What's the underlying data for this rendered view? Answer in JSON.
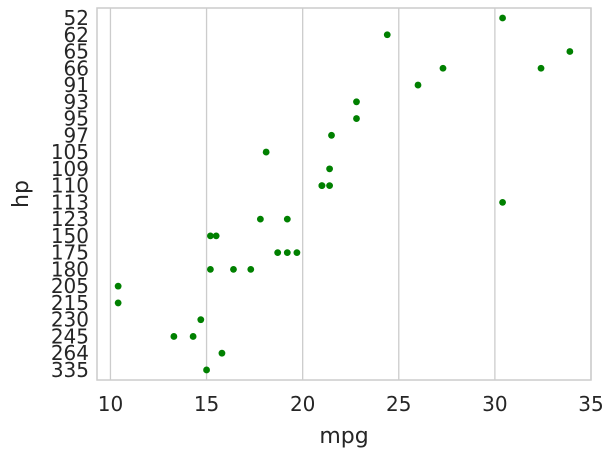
{
  "chart_data": {
    "type": "scatter",
    "title": "",
    "xlabel": "mpg",
    "ylabel": "hp",
    "xlim": [
      9.3,
      35.0
    ],
    "xticks": [
      10,
      15,
      20,
      25,
      30,
      35
    ],
    "categories": [
      "52",
      "62",
      "65",
      "66",
      "91",
      "93",
      "95",
      "97",
      "105",
      "109",
      "110",
      "113",
      "123",
      "150",
      "175",
      "180",
      "205",
      "215",
      "230",
      "245",
      "264",
      "335"
    ],
    "grid": "vertical",
    "marker_color": "#008000",
    "points": [
      {
        "x": 30.4,
        "y": "52"
      },
      {
        "x": 24.4,
        "y": "62"
      },
      {
        "x": 33.9,
        "y": "65"
      },
      {
        "x": 32.4,
        "y": "66"
      },
      {
        "x": 27.3,
        "y": "66"
      },
      {
        "x": 26.0,
        "y": "91"
      },
      {
        "x": 22.8,
        "y": "93"
      },
      {
        "x": 22.8,
        "y": "95"
      },
      {
        "x": 21.5,
        "y": "97"
      },
      {
        "x": 18.1,
        "y": "105"
      },
      {
        "x": 21.4,
        "y": "109"
      },
      {
        "x": 21.0,
        "y": "110"
      },
      {
        "x": 21.4,
        "y": "110"
      },
      {
        "x": 21.0,
        "y": "110"
      },
      {
        "x": 30.4,
        "y": "113"
      },
      {
        "x": 17.8,
        "y": "123"
      },
      {
        "x": 19.2,
        "y": "123"
      },
      {
        "x": 15.2,
        "y": "150"
      },
      {
        "x": 15.5,
        "y": "150"
      },
      {
        "x": 18.7,
        "y": "175"
      },
      {
        "x": 19.2,
        "y": "175"
      },
      {
        "x": 19.7,
        "y": "175"
      },
      {
        "x": 15.2,
        "y": "180"
      },
      {
        "x": 16.4,
        "y": "180"
      },
      {
        "x": 17.3,
        "y": "180"
      },
      {
        "x": 10.4,
        "y": "205"
      },
      {
        "x": 10.4,
        "y": "215"
      },
      {
        "x": 14.7,
        "y": "230"
      },
      {
        "x": 13.3,
        "y": "245"
      },
      {
        "x": 14.3,
        "y": "245"
      },
      {
        "x": 15.8,
        "y": "264"
      },
      {
        "x": 15.0,
        "y": "335"
      }
    ]
  }
}
